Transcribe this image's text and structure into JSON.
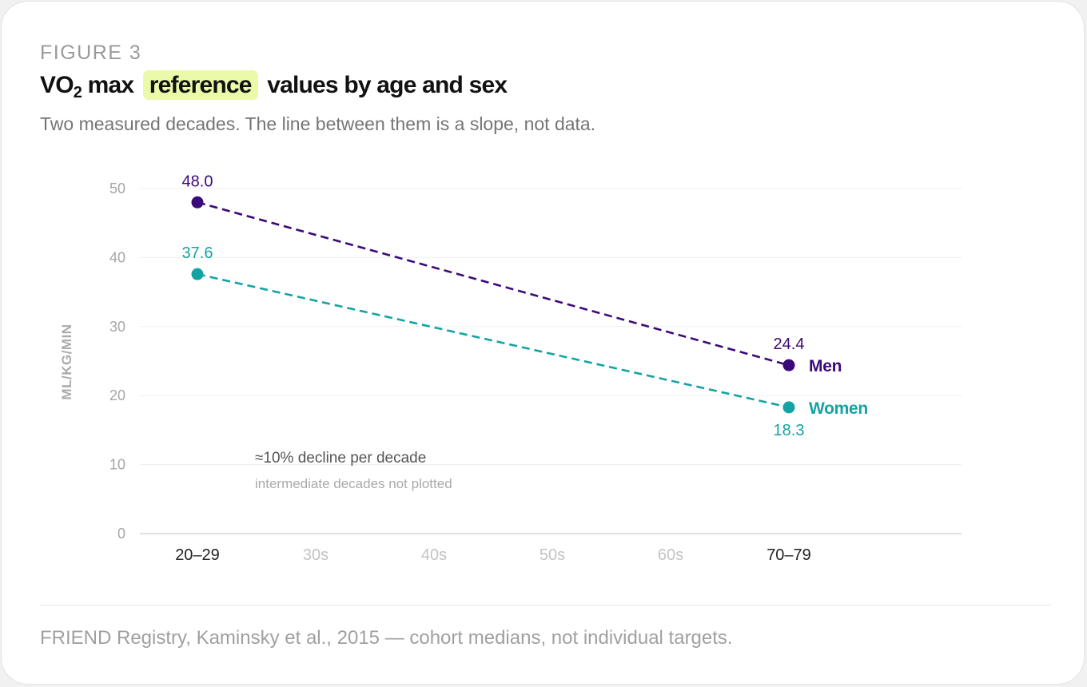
{
  "figure": {
    "eyebrow": "FIGURE 3",
    "title_pre": "VO",
    "title_sub": "2",
    "title_mid": " max ",
    "title_highlight": "reference",
    "title_post": " values by age and sex",
    "subtitle": "Two measured decades. The line between them is a slope, not data.",
    "source": "FRIEND Registry, Kaminsky et al., 2015 — cohort medians, not individual targets."
  },
  "chart_data": {
    "type": "line",
    "title": "VO2 max reference values by age and sex",
    "ylabel": "ML/KG/MIN",
    "xlabel": "",
    "ylim": [
      0,
      50
    ],
    "yticks": [
      0,
      10,
      20,
      30,
      40,
      50
    ],
    "categories": [
      "20–29",
      "30s",
      "40s",
      "50s",
      "60s",
      "70–79"
    ],
    "measured_categories": [
      "20–29",
      "70–79"
    ],
    "grid": true,
    "legend_placement": "end-of-line labels",
    "series": [
      {
        "name": "Men",
        "color": "#3b0a7a",
        "points": [
          {
            "x": "20–29",
            "y": 48.0,
            "label": "48.0"
          },
          {
            "x": "70–79",
            "y": 24.4,
            "label": "24.4"
          }
        ]
      },
      {
        "name": "Women",
        "color": "#14a3a3",
        "points": [
          {
            "x": "20–29",
            "y": 37.6,
            "label": "37.6"
          },
          {
            "x": "70–79",
            "y": 18.3,
            "label": "18.3"
          }
        ]
      }
    ],
    "annotations": [
      {
        "text": "≈10% decline per decade",
        "style": "primary"
      },
      {
        "text": "intermediate decades not plotted",
        "style": "secondary"
      }
    ]
  }
}
